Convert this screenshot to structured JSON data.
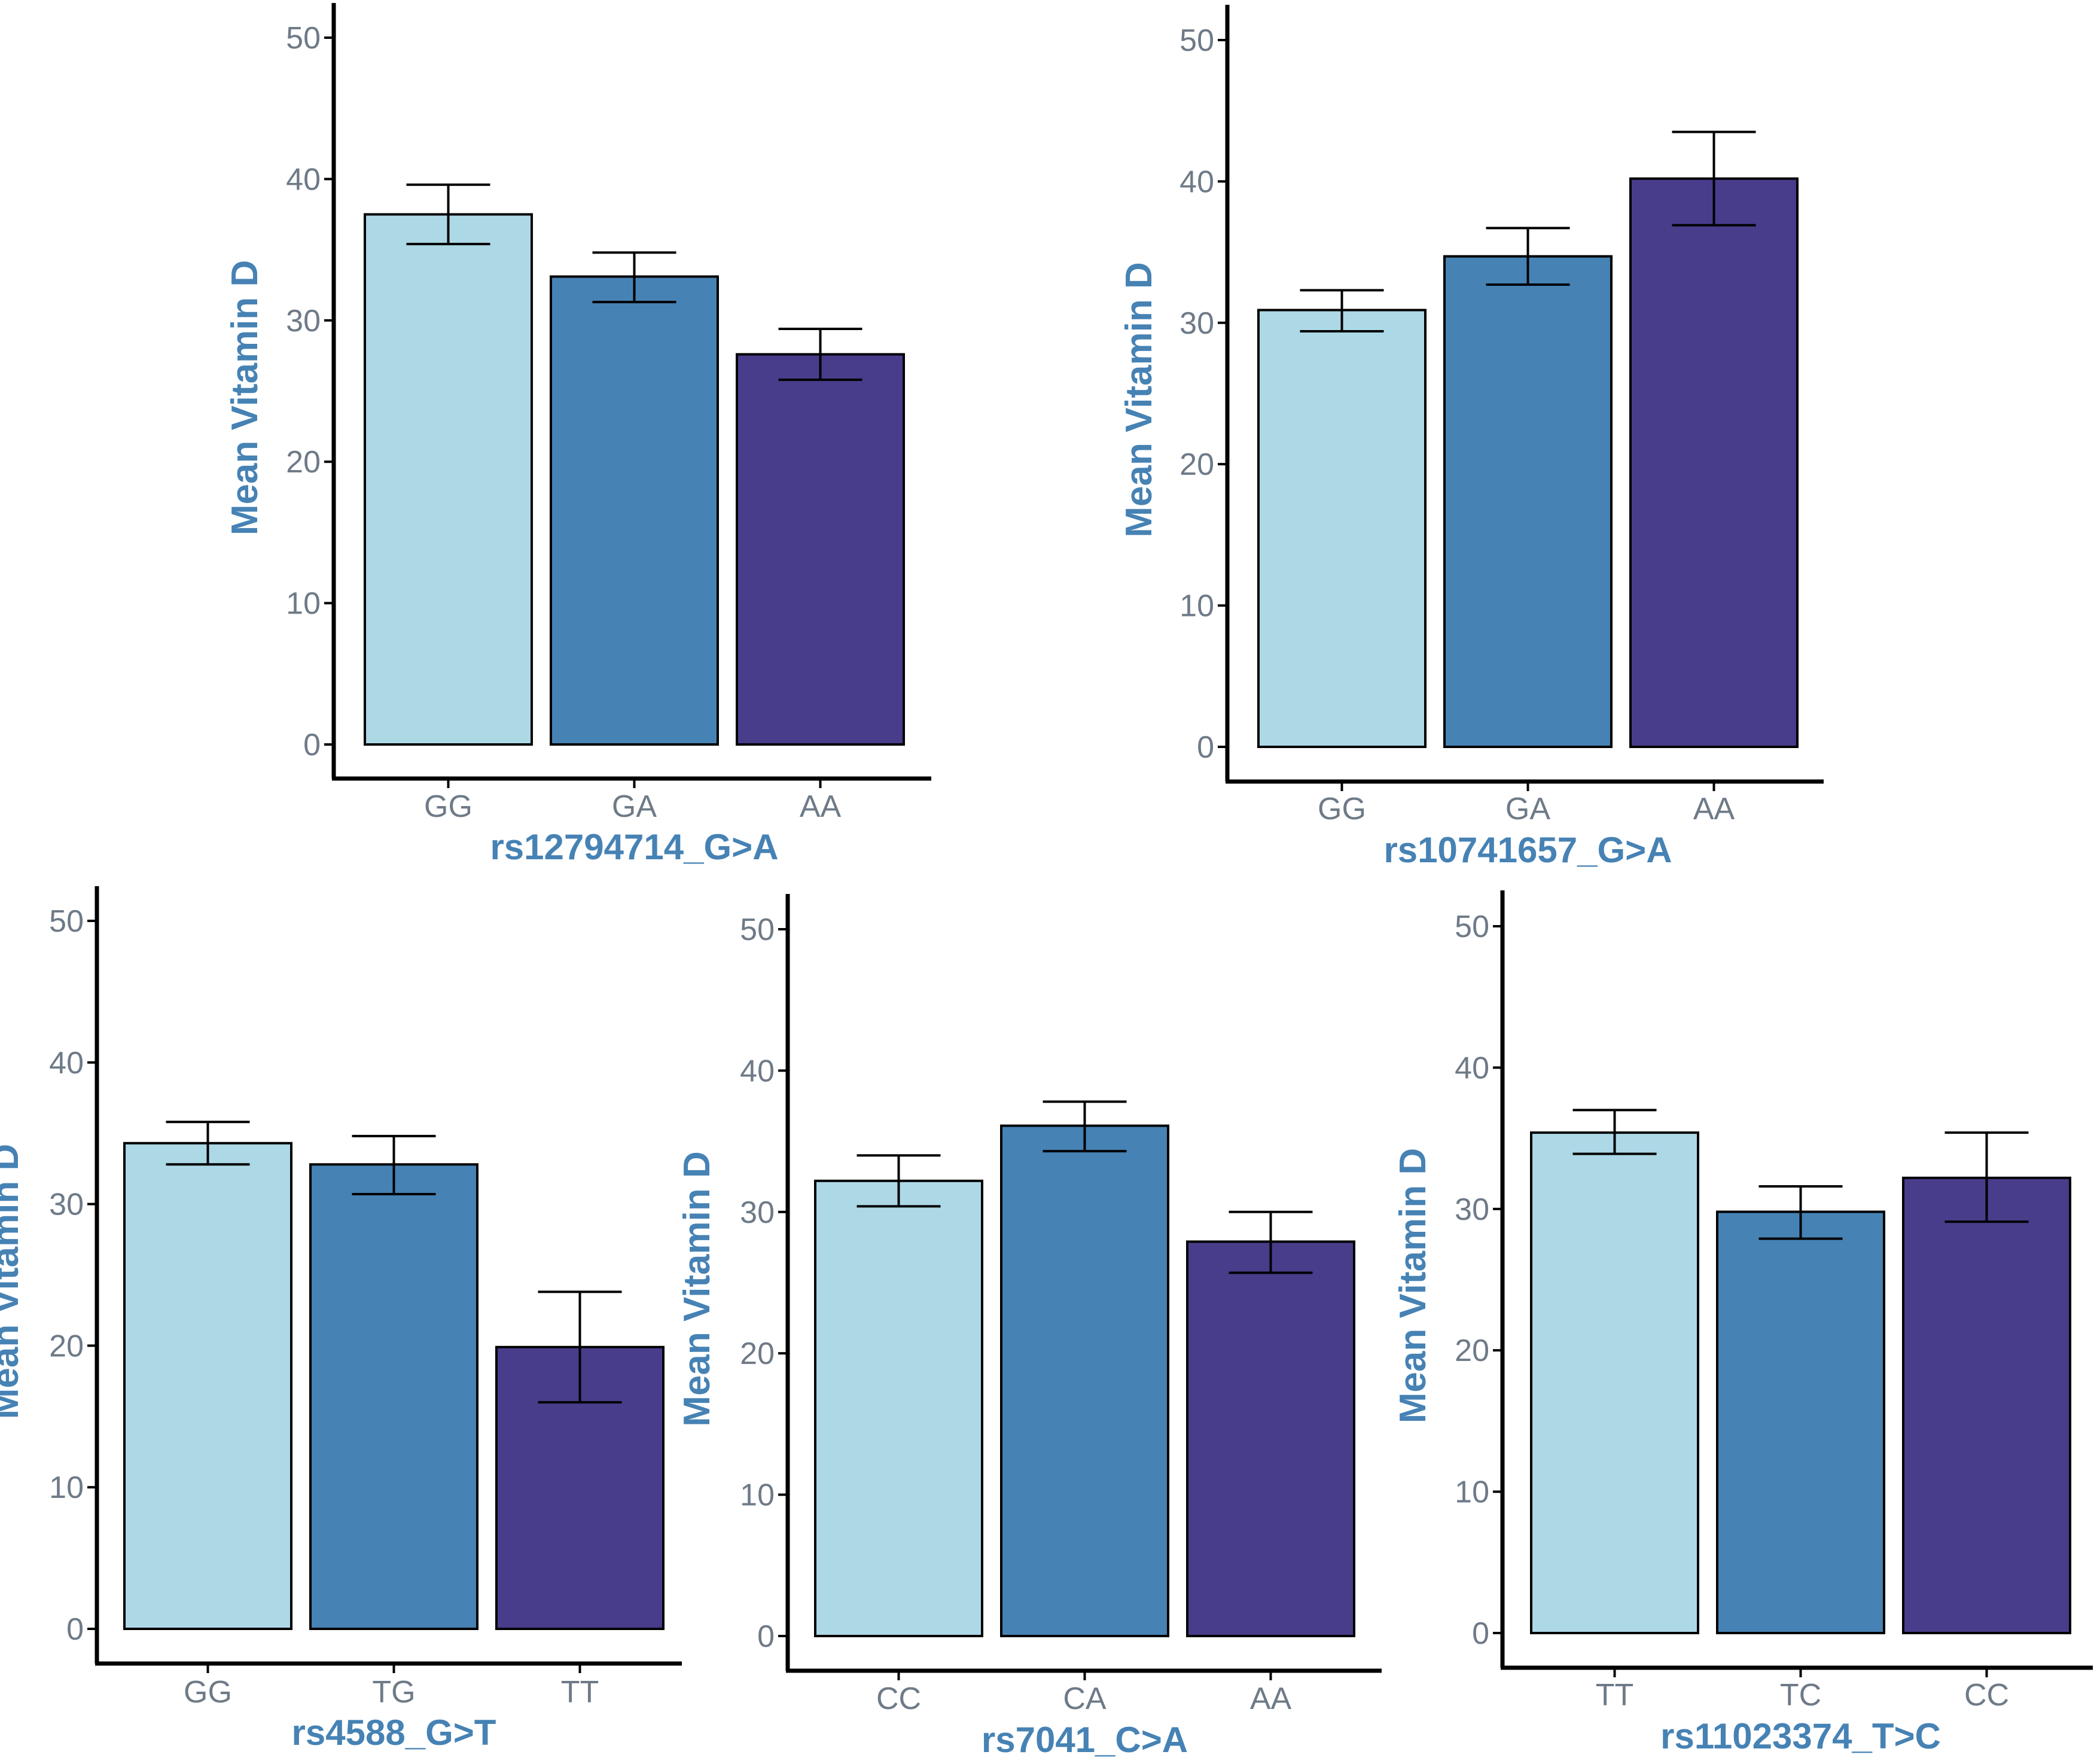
{
  "colors": {
    "axis_title": "#4682b4",
    "tick_label": "#6e7a87",
    "genotype_fills": [
      "#add8e6",
      "#4682b4",
      "#483d8b"
    ]
  },
  "chart_data": [
    {
      "type": "bar",
      "xlabel": "rs12794714_G>A",
      "ylabel": "Mean Vitamin D",
      "ylim": [
        0,
        52
      ],
      "yticks": [
        0,
        10,
        20,
        30,
        40,
        50
      ],
      "categories": [
        "GG",
        "GA",
        "AA"
      ],
      "values": [
        37.5,
        33.1,
        27.6
      ],
      "error_low": [
        35.4,
        31.3,
        25.8
      ],
      "error_high": [
        39.6,
        34.8,
        29.4
      ]
    },
    {
      "type": "bar",
      "xlabel": "rs10741657_G>A",
      "ylabel": "Mean Vitamin D",
      "ylim": [
        0,
        52
      ],
      "yticks": [
        0,
        10,
        20,
        30,
        40,
        50
      ],
      "categories": [
        "GG",
        "GA",
        "AA"
      ],
      "values": [
        30.9,
        34.7,
        40.2
      ],
      "error_low": [
        29.4,
        32.7,
        36.9
      ],
      "error_high": [
        32.3,
        36.7,
        43.5
      ]
    },
    {
      "type": "bar",
      "xlabel": "rs4588_G>T",
      "ylabel": "Mean Vitamin D",
      "ylim": [
        0,
        52
      ],
      "yticks": [
        0,
        10,
        20,
        30,
        40,
        50
      ],
      "categories": [
        "GG",
        "TG",
        "TT"
      ],
      "values": [
        34.3,
        32.8,
        19.9
      ],
      "error_low": [
        32.8,
        30.7,
        16.0
      ],
      "error_high": [
        35.8,
        34.8,
        23.8
      ]
    },
    {
      "type": "bar",
      "xlabel": "rs7041_C>A",
      "ylabel": "Mean Vitamin D",
      "ylim": [
        0,
        52
      ],
      "yticks": [
        0,
        10,
        20,
        30,
        40,
        50
      ],
      "categories": [
        "CC",
        "CA",
        "AA"
      ],
      "values": [
        32.2,
        36.1,
        27.9
      ],
      "error_low": [
        30.4,
        34.3,
        25.7
      ],
      "error_high": [
        34.0,
        37.8,
        30.0
      ]
    },
    {
      "type": "bar",
      "xlabel": "rs11023374_T>C",
      "ylabel": "Mean Vitamin D",
      "ylim": [
        0,
        52
      ],
      "yticks": [
        0,
        10,
        20,
        30,
        40,
        50
      ],
      "categories": [
        "TT",
        "TC",
        "CC"
      ],
      "values": [
        35.4,
        29.8,
        32.2
      ],
      "error_low": [
        33.9,
        27.9,
        29.1
      ],
      "error_high": [
        37.0,
        31.6,
        35.4
      ]
    }
  ]
}
